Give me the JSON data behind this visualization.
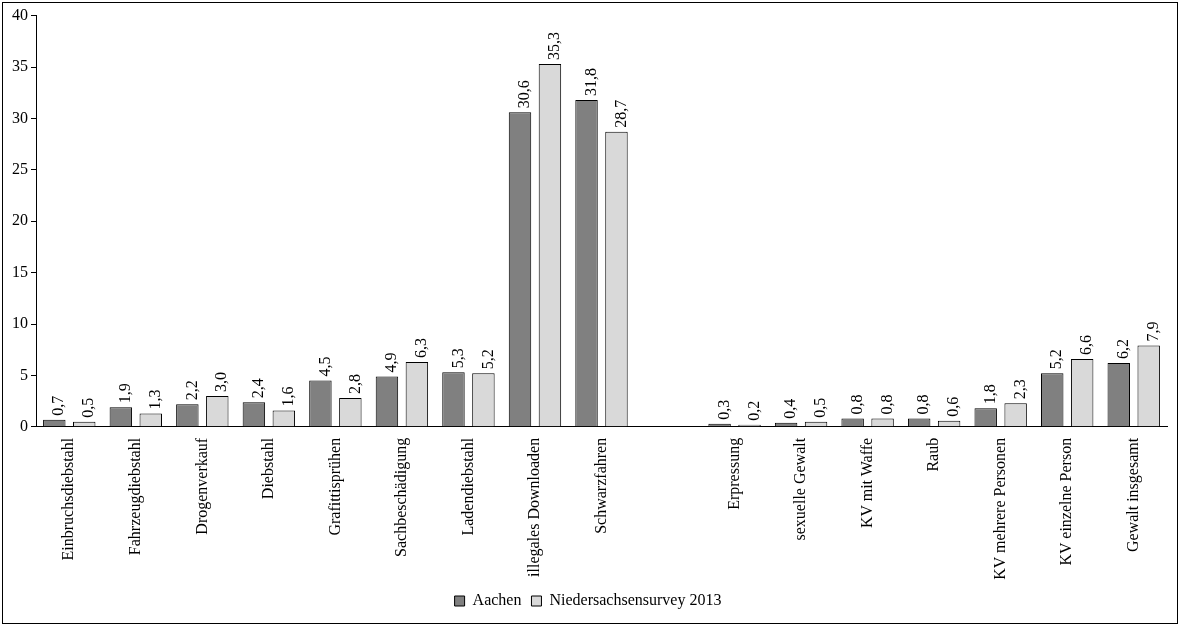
{
  "chart_data": {
    "type": "bar",
    "categories": [
      "Einbruchsdiebstahl",
      "Fahrzeugdiebstahl",
      "Drogenverkauf",
      "Diebstahl",
      "Grafittisprühen",
      "Sachbeschädigung",
      "Ladendiebstahl",
      "illegales Downloaden",
      "Schwarzfahren",
      null,
      "Erpressung",
      "sexuelle Gewalt",
      "KV mit Waffe",
      "Raub",
      "KV mehrere Personen",
      "KV einzelne Person",
      "Gewalt insgesamt"
    ],
    "series": [
      {
        "name": "Aachen",
        "color": "#808080",
        "values": [
          0.7,
          1.9,
          2.2,
          2.4,
          4.5,
          4.9,
          5.3,
          30.6,
          31.8,
          null,
          0.3,
          0.4,
          0.8,
          0.8,
          1.8,
          5.2,
          6.2
        ],
        "value_labels": [
          "0,7",
          "1,9",
          "2,2",
          "2,4",
          "4,5",
          "4,9",
          "5,3",
          "30,6",
          "31,8",
          null,
          "0,3",
          "0,4",
          "0,8",
          "0,8",
          "1,8",
          "5,2",
          "6,2"
        ]
      },
      {
        "name": "Niedersachsensurvey 2013",
        "color": "#d9d9d9",
        "values": [
          0.5,
          1.3,
          3.0,
          1.6,
          2.8,
          6.3,
          5.2,
          35.3,
          28.7,
          null,
          0.2,
          0.5,
          0.8,
          0.6,
          2.3,
          6.6,
          7.9
        ],
        "value_labels": [
          "0,5",
          "1,3",
          "3,0",
          "1,6",
          "2,8",
          "6,3",
          "5,2",
          "35,3",
          "28,7",
          null,
          "0,2",
          "0,5",
          "0,8",
          "0,6",
          "2,3",
          "6,6",
          "7,9"
        ]
      }
    ],
    "ylim": [
      0,
      40
    ],
    "yticks": [
      0,
      5,
      10,
      15,
      20,
      25,
      30,
      35,
      40
    ],
    "grid": false,
    "legend": "bottom"
  }
}
